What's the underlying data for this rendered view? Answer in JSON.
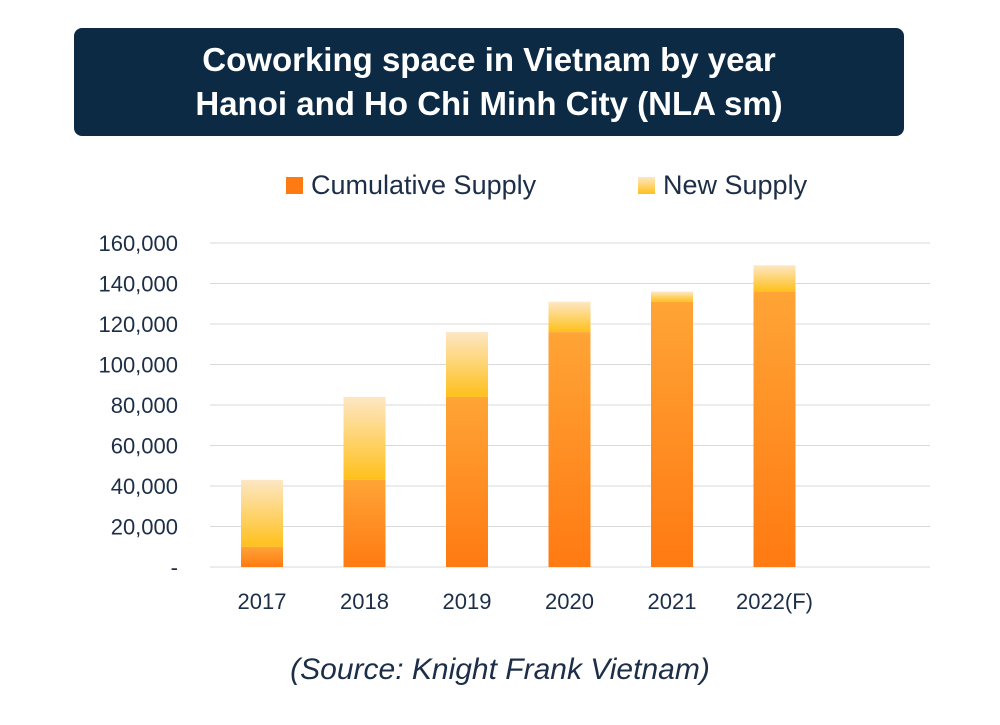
{
  "header": {
    "title_line1": "Coworking space in Vietnam by year",
    "title_line2": "Hanoi and Ho Chi Minh City (NLA sm)"
  },
  "source": "(Source: Knight Frank Vietnam)",
  "colors": {
    "title_bg": "#0c2a44",
    "cumulative_top": "#ffa436",
    "cumulative_bottom": "#ff7a12",
    "new_top": "#fde7c4",
    "new_bottom": "#ffc01a",
    "grid": "#d9d9d9",
    "text": "#1c2e48"
  },
  "chart_data": {
    "type": "bar",
    "stacked": true,
    "categories": [
      "2017",
      "2018",
      "2019",
      "2020",
      "2021",
      "2022(F)"
    ],
    "series": [
      {
        "name": "Cumulative Supply",
        "values": [
          10000,
          43000,
          84000,
          116000,
          131000,
          136000
        ]
      },
      {
        "name": "New Supply",
        "values": [
          33000,
          41000,
          32000,
          15000,
          5000,
          13000
        ]
      }
    ],
    "ylim": [
      0,
      160000
    ],
    "yticks": [
      0,
      20000,
      40000,
      60000,
      80000,
      100000,
      120000,
      140000,
      160000
    ],
    "ytick_labels": [
      "-",
      "20,000",
      "40,000",
      "60,000",
      "80,000",
      "100,000",
      "120,000",
      "140,000",
      "160,000"
    ],
    "legend": "top",
    "grid": true,
    "xlabel": "",
    "ylabel": ""
  }
}
